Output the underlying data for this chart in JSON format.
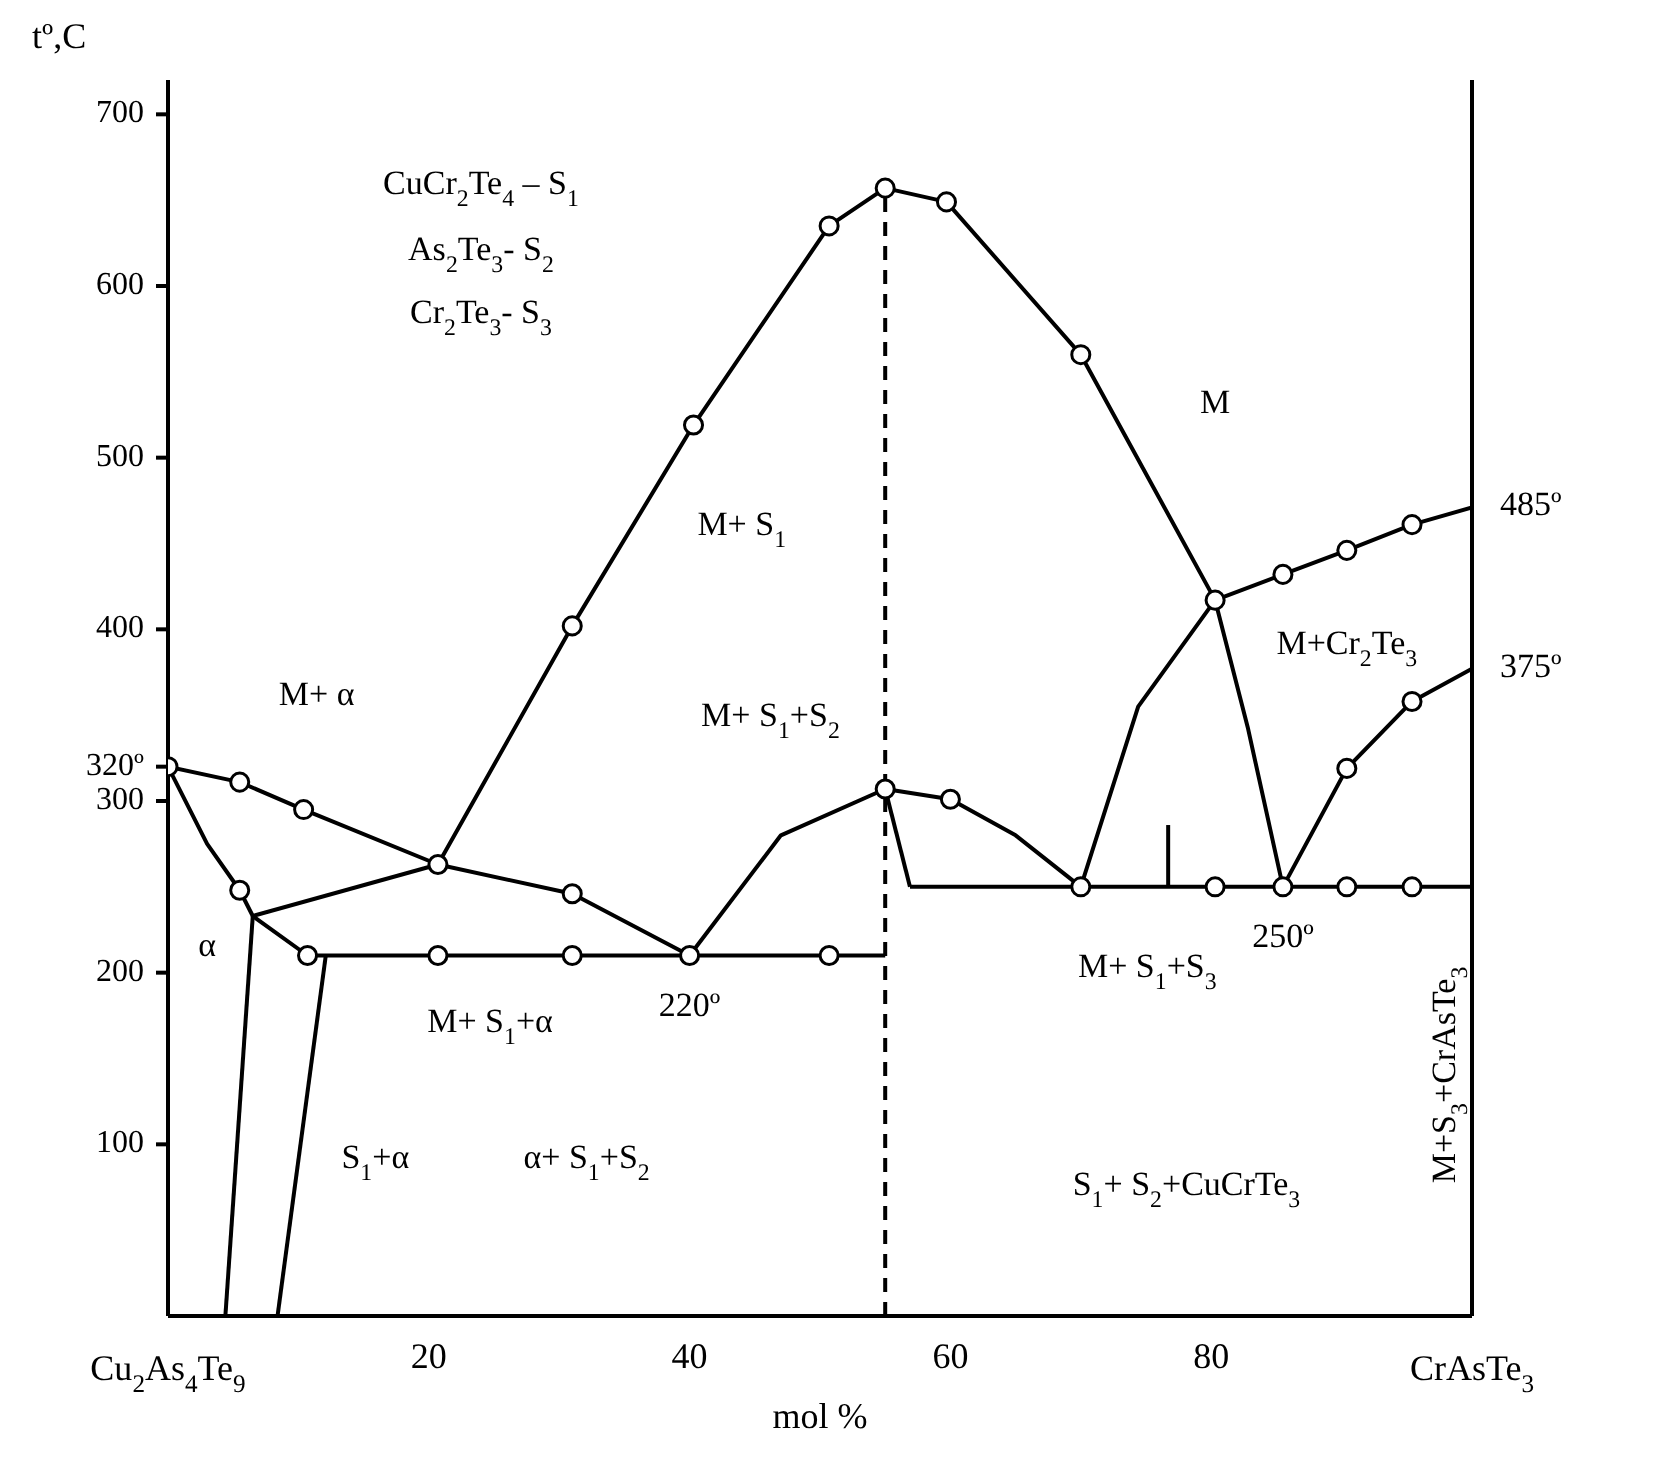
{
  "chart_data": {
    "type": "line",
    "xlabel": "mol %",
    "ylabel": "tº,C",
    "xlim": [
      0,
      100
    ],
    "ylim": [
      0,
      720
    ],
    "xticks": [
      20,
      40,
      60,
      80
    ],
    "yticks": [
      100,
      200,
      300,
      {
        "value": 320,
        "label": "320º"
      },
      400,
      500,
      600,
      700
    ],
    "series": [
      {
        "color": "#000000",
        "x": [
          0,
          5.5,
          10.4,
          20.7
        ],
        "values": [
          320,
          311,
          295,
          263
        ]
      },
      {
        "color": "#000000",
        "x": [
          0,
          3,
          5.5,
          6.5,
          10.7
        ],
        "values": [
          320,
          275,
          248,
          233,
          210
        ]
      },
      {
        "color": "#000000",
        "x": [
          6.5,
          20.7
        ],
        "values": [
          233,
          263
        ]
      },
      {
        "color": "#000000",
        "x": [
          6.5,
          4.4
        ],
        "values": [
          233,
          0
        ]
      },
      {
        "color": "#000000",
        "x": [
          12.1,
          8.4
        ],
        "values": [
          210,
          0
        ]
      },
      {
        "color": "#000000",
        "x": [
          10.7,
          55
        ],
        "values": [
          210,
          210
        ]
      },
      {
        "color": "#000000",
        "x": [
          20.7,
          31,
          40
        ],
        "values": [
          263,
          246,
          210
        ]
      },
      {
        "color": "#000000",
        "x": [
          20.7,
          31,
          40.3,
          50.7,
          55,
          59.7,
          70,
          80.3,
          82.8,
          85.5
        ],
        "values": [
          263,
          402,
          519,
          635,
          657,
          649,
          560,
          417,
          343,
          250
        ]
      },
      {
        "color": "#000000",
        "x": [
          40,
          47,
          55,
          60,
          65,
          70
        ],
        "values": [
          210,
          280,
          307,
          301,
          280,
          250
        ]
      },
      {
        "color": "#000000",
        "x": [
          55,
          56.9
        ],
        "values": [
          307,
          250
        ]
      },
      {
        "color": "#000000",
        "x": [
          56.9,
          100
        ],
        "values": [
          250,
          250
        ]
      },
      {
        "color": "#000000",
        "x": [
          70,
          74.4,
          80.3
        ],
        "values": [
          250,
          355,
          417
        ]
      },
      {
        "color": "#000000",
        "x": [
          80.3,
          85.5,
          90.4,
          95.4,
          100
        ],
        "values": [
          417,
          432,
          446,
          461,
          471
        ]
      },
      {
        "color": "#000000",
        "x": [
          85.5,
          90.4,
          95.4,
          100
        ],
        "values": [
          250,
          319,
          358,
          377
        ]
      },
      {
        "color": "#000000",
        "x": [
          76.7,
          76.7
        ],
        "values": [
          250,
          286
        ]
      },
      {
        "color": "#000000",
        "line_style": "dashed",
        "x": [
          55,
          55
        ],
        "values": [
          0,
          657
        ]
      },
      {
        "type": "scatter",
        "marker": "circle",
        "color": "#000000",
        "x": [
          0,
          5.5,
          10.4,
          20.7,
          5.5,
          10.7,
          20.7,
          31,
          40,
          50.7,
          31,
          31,
          40.3,
          50.7,
          55,
          59.7,
          70,
          80.3,
          85.5,
          90.4,
          95.4,
          55,
          60,
          70,
          80.3,
          90.4,
          95.4,
          85.5,
          90.4,
          95.4
        ],
        "values": [
          320,
          311,
          295,
          263,
          248,
          210,
          210,
          210,
          210,
          210,
          246,
          402,
          519,
          635,
          657,
          649,
          560,
          417,
          432,
          446,
          461,
          307,
          301,
          250,
          250,
          250,
          250,
          250,
          319,
          358
        ]
      }
    ],
    "annotations": [
      "CuCr$_{2}$Te$_{4}$ – S$_{1}$",
      "As$_{2}$Te$_{3}$- S$_{2}$",
      "Cr$_{2}$Te$_{3}$- S$_{3}$",
      "M",
      "M+ S$_{1}$",
      "M+ α",
      "M+ S$_{1}$+S$_{2}$",
      "α",
      "M+ S$_{1}$+α",
      "S$_{1}$+α",
      "α+ S$_{1}$+S$_{2}$",
      "M+ S$_{1}$+S$_{3}$",
      "M+Cr$_{2}$Te$_{3}$",
      "S$_{1}$+ S$_{2}$+CuCrTe$_{3}$",
      "M+S$_{3}$+CrAsTe$_{3}$",
      {
        "text": "220º",
        "x": 40,
        "y": 210
      },
      {
        "text": "250º",
        "x": 85.5,
        "y": 250
      },
      {
        "text": "375º",
        "x": 100,
        "y": 377
      },
      {
        "text": "485º",
        "x": 100,
        "y": 471
      },
      "Cu$_{2}$As$_{4}$Te$_{9}$",
      "CrAsTe$_{3}$"
    ]
  }
}
